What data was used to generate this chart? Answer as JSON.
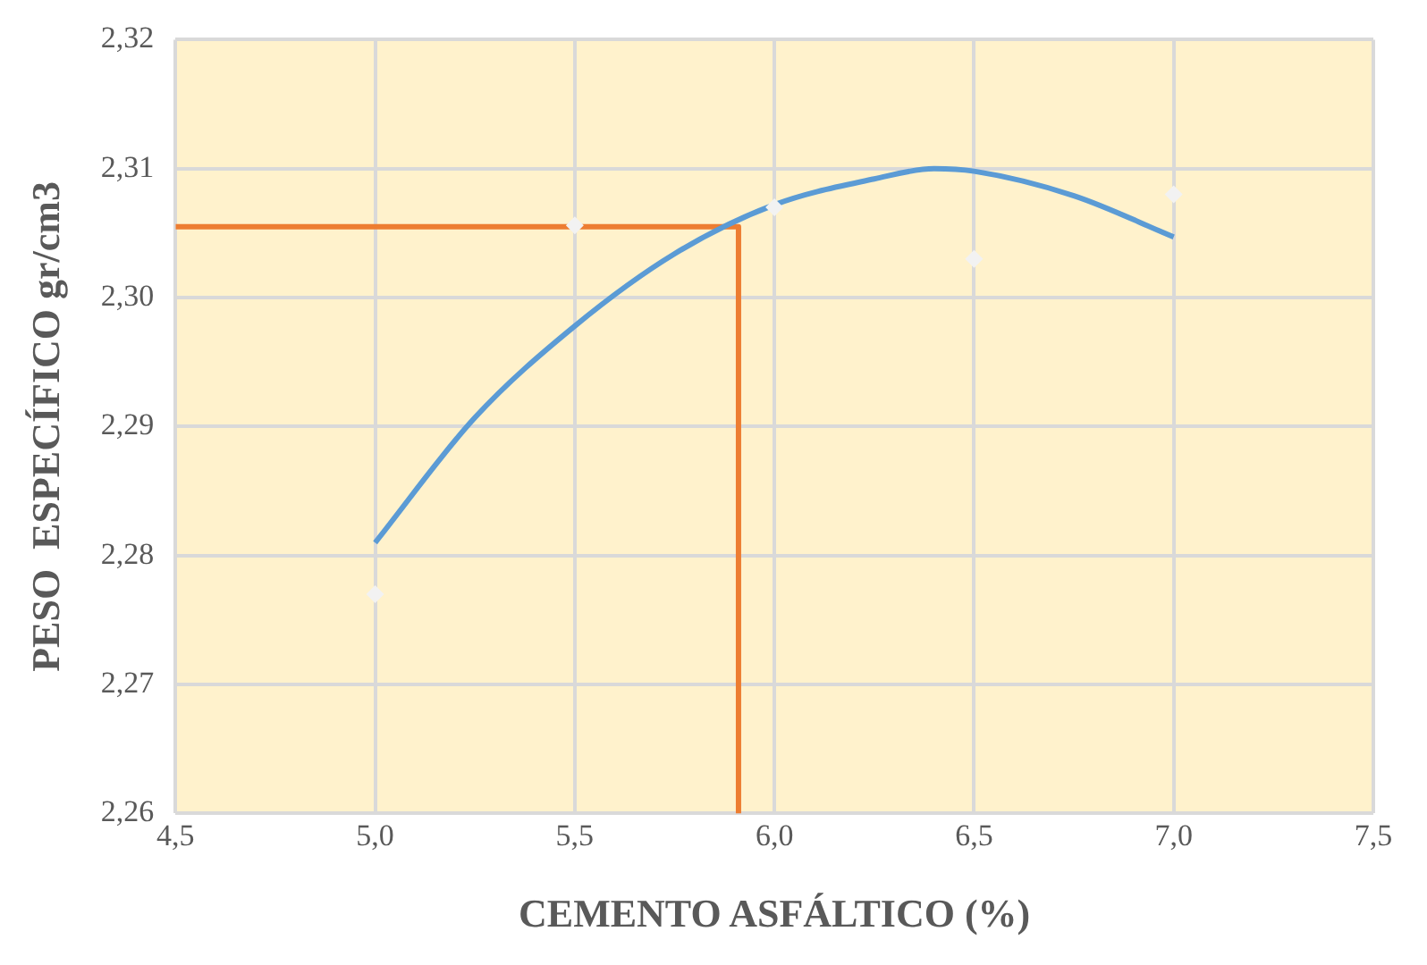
{
  "chart_data": {
    "type": "scatter",
    "xlabel": "CEMENTO ASFÁLTICO (%)",
    "ylabel": "PESO  ESPECÍFICO gr/cm3",
    "xlim": [
      4.5,
      7.5
    ],
    "xticks": [
      {
        "value": 4.5,
        "label": "4,5"
      },
      {
        "value": 5,
        "label": "5,0"
      },
      {
        "value": 5.5,
        "label": "5,5"
      },
      {
        "value": 6,
        "label": "6,0"
      },
      {
        "value": 6.5,
        "label": "6,5"
      },
      {
        "value": 7,
        "label": "7,0"
      },
      {
        "value": 7.5,
        "label": "7,5"
      }
    ],
    "ylim": [
      2.26,
      2.32
    ],
    "yticks": [
      {
        "value": 2.26,
        "label": "2,26"
      },
      {
        "value": 2.27,
        "label": "2,27"
      },
      {
        "value": 2.28,
        "label": "2,28"
      },
      {
        "value": 2.29,
        "label": "2,29"
      },
      {
        "value": 2.3,
        "label": "2,30"
      },
      {
        "value": 2.31,
        "label": "2,31"
      },
      {
        "value": 2.32,
        "label": "2,32"
      }
    ],
    "grid": true,
    "legend": false,
    "series": [
      {
        "type": "scatter",
        "color": "#f2f2f2",
        "marker": "diamond",
        "x": [
          5,
          5.5,
          6,
          6.5,
          7
        ],
        "values": [
          2.277,
          2.3056,
          2.307,
          2.303,
          2.308
        ]
      },
      {
        "type": "line",
        "color": "#5b9bd5",
        "marker": "none",
        "x": [
          5,
          5.25,
          5.5,
          5.75,
          6,
          6.25,
          6.4,
          6.5,
          6.75,
          7
        ],
        "values": [
          2.281,
          2.2907,
          2.2978,
          2.3034,
          2.3072,
          2.3092,
          2.31,
          2.3098,
          2.3079,
          2.3047
        ]
      },
      {
        "type": "line",
        "color": "#ed7d31",
        "marker": "none",
        "x": [
          4.5,
          5.91,
          5.91
        ],
        "values": [
          2.3055,
          2.3055,
          2.26
        ]
      }
    ]
  }
}
